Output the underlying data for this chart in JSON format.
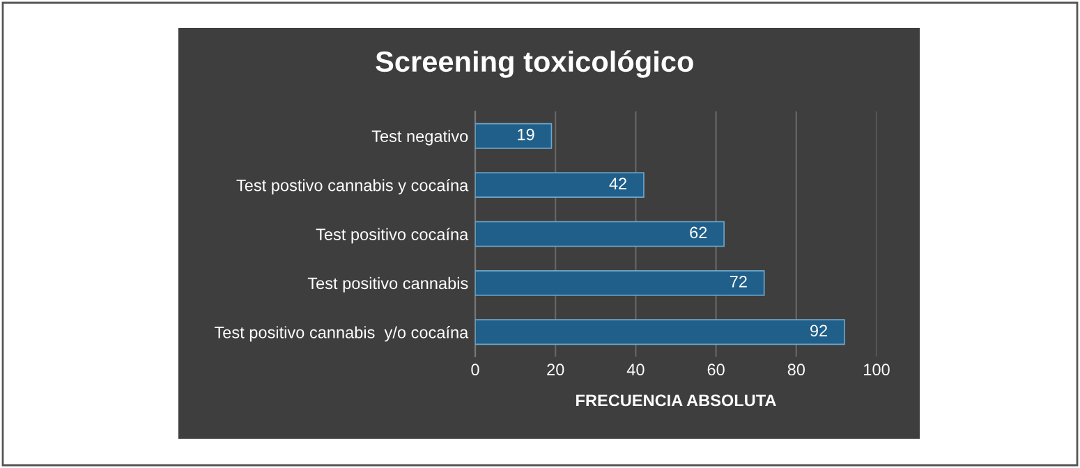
{
  "chart_data": {
    "type": "bar",
    "orientation": "horizontal",
    "title": "Screening toxicológico",
    "xlabel": "FRECUENCIA ABSOLUTA",
    "categories": [
      "Test negativo",
      "Test postivo cannabis y cocaína",
      "Test positivo cocaína",
      "Test positivo cannabis",
      "Test positivo cannabis  y/o cocaína"
    ],
    "values": [
      19,
      42,
      62,
      72,
      92
    ],
    "color": "#1f5f8a",
    "xlim": [
      0,
      100
    ],
    "xticks": [
      0,
      20,
      40,
      60,
      80,
      100
    ],
    "grid": "x",
    "data_labels": true
  }
}
